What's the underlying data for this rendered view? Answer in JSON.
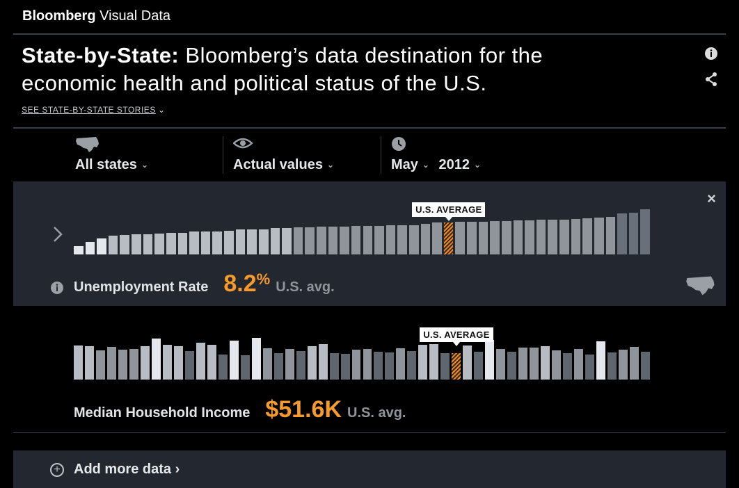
{
  "brand": {
    "bold": "Bloomberg",
    "light": "Visual Data"
  },
  "headline": {
    "bold": "State-by-State:",
    "light": "Bloomberg’s data destination for the economic health and political status of the U.S."
  },
  "stories_link": {
    "label": "SEE STATE-BY-STATE STORIES",
    "icon": "chevron-down-icon"
  },
  "icons": {
    "info": "info-icon",
    "share": "share-icon"
  },
  "controls": {
    "states": {
      "icon": "us-map-icon",
      "label": "All states"
    },
    "view": {
      "icon": "eye-icon",
      "label": "Actual values"
    },
    "time": {
      "icon": "clock-icon",
      "month": "May",
      "year": "2012"
    }
  },
  "colors": {
    "accent": "#f69a2b",
    "panel": "#232830"
  },
  "metrics": [
    {
      "name": "Unemployment Rate",
      "value": "8.2",
      "value_suffix": "%",
      "unit": "U.S. avg.",
      "avg_label": "U.S. AVERAGE"
    },
    {
      "name": "Median Household Income",
      "value": "$51.6K",
      "unit": "U.S. avg.",
      "avg_label": "U.S. AVERAGE"
    }
  ],
  "add_more": {
    "label": "Add more data ›"
  },
  "chart_data": [
    {
      "type": "bar",
      "title": "Unemployment Rate",
      "values": [
        0.18,
        0.28,
        0.36,
        0.42,
        0.43,
        0.44,
        0.45,
        0.46,
        0.47,
        0.48,
        0.5,
        0.5,
        0.51,
        0.52,
        0.55,
        0.55,
        0.56,
        0.58,
        0.59,
        0.6,
        0.6,
        0.61,
        0.61,
        0.62,
        0.63,
        0.63,
        0.63,
        0.64,
        0.64,
        0.65,
        0.68,
        0.7,
        0.71,
        0.72,
        0.72,
        0.73,
        0.74,
        0.74,
        0.75,
        0.75,
        0.77,
        0.77,
        0.77,
        0.78,
        0.8,
        0.82,
        0.83,
        0.91,
        0.92,
        1.0
      ],
      "average_index": 32
    },
    {
      "type": "bar",
      "title": "Median Household Income",
      "values": [
        0.82,
        0.8,
        0.7,
        0.78,
        0.72,
        0.73,
        0.8,
        0.98,
        0.83,
        0.8,
        0.68,
        0.89,
        0.83,
        0.6,
        0.93,
        0.58,
        1.0,
        0.75,
        0.64,
        0.73,
        0.68,
        0.8,
        0.85,
        0.63,
        0.62,
        0.71,
        0.73,
        0.66,
        0.65,
        0.75,
        0.68,
        0.83,
        0.85,
        0.63,
        0.64,
        0.82,
        0.67,
        0.95,
        0.74,
        0.67,
        0.76,
        0.76,
        0.8,
        0.7,
        0.63,
        0.73,
        0.6,
        0.92,
        0.65,
        0.72,
        0.78,
        0.67
      ],
      "average_index": 34
    }
  ]
}
